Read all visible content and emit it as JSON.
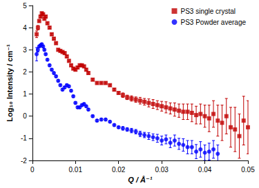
{
  "chart_data": {
    "type": "scatter",
    "x_label": "Q / Å⁻¹",
    "y_label": "Log₁₀ Intensity / cm⁻¹",
    "xlim": [
      0,
      0.05
    ],
    "xticks": [
      0,
      0.01,
      0.02,
      0.03,
      0.04,
      0.05
    ],
    "ylim": [
      -2,
      5
    ],
    "yticks": [
      -2,
      -1,
      0,
      1,
      2,
      3,
      4,
      5
    ],
    "grid": false,
    "legend": "top-right",
    "series": [
      {
        "name": "PS3 single crystal",
        "color": "#c00000",
        "marker": "square",
        "x": [
          0.001,
          0.0013,
          0.0016,
          0.0019,
          0.0022,
          0.0025,
          0.0028,
          0.0031,
          0.0035,
          0.004,
          0.0045,
          0.005,
          0.0055,
          0.006,
          0.0065,
          0.007,
          0.0075,
          0.008,
          0.0085,
          0.009,
          0.0095,
          0.01,
          0.0105,
          0.011,
          0.0115,
          0.012,
          0.0125,
          0.013,
          0.014,
          0.015,
          0.016,
          0.017,
          0.018,
          0.019,
          0.02,
          0.021,
          0.022,
          0.023,
          0.024,
          0.025,
          0.026,
          0.027,
          0.028,
          0.029,
          0.03,
          0.031,
          0.032,
          0.033,
          0.034,
          0.035,
          0.036,
          0.037,
          0.038,
          0.039,
          0.04,
          0.041,
          0.042,
          0.043,
          0.044,
          0.045,
          0.046,
          0.047,
          0.048,
          0.049,
          0.05
        ],
        "values": [
          3.7,
          4.0,
          4.3,
          4.5,
          4.65,
          4.6,
          4.4,
          4.5,
          4.2,
          4.0,
          3.7,
          3.5,
          3.3,
          3.0,
          2.95,
          2.9,
          2.85,
          2.7,
          2.5,
          2.3,
          2.15,
          2.1,
          2.2,
          2.3,
          2.3,
          2.25,
          2.1,
          1.95,
          1.65,
          1.5,
          1.5,
          1.5,
          1.4,
          1.2,
          1.05,
          0.95,
          0.85,
          0.8,
          0.75,
          0.7,
          0.65,
          0.6,
          0.55,
          0.5,
          0.45,
          0.4,
          0.35,
          0.3,
          0.25,
          0.2,
          0.2,
          0.15,
          0.05,
          0.1,
          0.0,
          -0.1,
          0.1,
          -0.2,
          -0.3,
          0.0,
          -0.5,
          -0.6,
          -0.9,
          -0.2,
          -0.5
        ],
        "errors": [
          0.15,
          0.1,
          0.05,
          0.05,
          0.05,
          0.05,
          0.05,
          0.05,
          0.05,
          0.05,
          0.05,
          0.05,
          0.05,
          0.05,
          0.05,
          0.05,
          0.05,
          0.05,
          0.05,
          0.05,
          0.05,
          0.05,
          0.05,
          0.05,
          0.05,
          0.05,
          0.05,
          0.05,
          0.05,
          0.05,
          0.05,
          0.05,
          0.05,
          0.05,
          0.05,
          0.1,
          0.1,
          0.12,
          0.12,
          0.15,
          0.15,
          0.18,
          0.2,
          0.2,
          0.22,
          0.25,
          0.25,
          0.3,
          0.3,
          0.35,
          0.35,
          0.4,
          0.4,
          0.45,
          0.5,
          0.6,
          0.6,
          0.7,
          0.8,
          0.8,
          0.9,
          1.0,
          1.0,
          1.1,
          1.2
        ]
      },
      {
        "name": "PS3 Powder average",
        "color": "#0000ff",
        "marker": "circle",
        "x": [
          0.001,
          0.0013,
          0.0016,
          0.0019,
          0.0022,
          0.0025,
          0.0028,
          0.0031,
          0.0035,
          0.004,
          0.0045,
          0.005,
          0.0055,
          0.006,
          0.0065,
          0.007,
          0.0075,
          0.008,
          0.0085,
          0.009,
          0.0095,
          0.01,
          0.0105,
          0.011,
          0.0115,
          0.012,
          0.0125,
          0.013,
          0.014,
          0.015,
          0.016,
          0.017,
          0.018,
          0.019,
          0.02,
          0.021,
          0.022,
          0.023,
          0.024,
          0.025,
          0.026,
          0.027,
          0.028,
          0.029,
          0.03,
          0.031,
          0.032,
          0.033,
          0.034,
          0.035,
          0.036,
          0.037,
          0.038,
          0.039,
          0.04,
          0.041,
          0.042,
          0.043
        ],
        "values": [
          2.8,
          3.0,
          3.15,
          3.2,
          3.25,
          3.15,
          3.0,
          2.8,
          2.55,
          2.3,
          2.1,
          1.95,
          1.8,
          1.6,
          1.4,
          1.2,
          1.3,
          1.4,
          1.35,
          1.15,
          0.9,
          0.6,
          0.4,
          0.4,
          0.5,
          0.55,
          0.45,
          0.3,
          0.0,
          -0.2,
          -0.15,
          -0.15,
          -0.25,
          -0.4,
          -0.5,
          -0.55,
          -0.6,
          -0.65,
          -0.7,
          -0.8,
          -0.85,
          -0.9,
          -0.95,
          -1.0,
          -1.1,
          -1.05,
          -1.2,
          -1.1,
          -1.25,
          -1.3,
          -1.4,
          -1.4,
          -1.6,
          -1.5,
          -1.65,
          -1.6,
          -1.5,
          -1.7
        ],
        "errors": [
          0.3,
          0.1,
          0.05,
          0.05,
          0.05,
          0.05,
          0.05,
          0.05,
          0.05,
          0.05,
          0.05,
          0.05,
          0.05,
          0.05,
          0.05,
          0.05,
          0.05,
          0.05,
          0.05,
          0.05,
          0.05,
          0.05,
          0.05,
          0.05,
          0.05,
          0.05,
          0.05,
          0.05,
          0.05,
          0.05,
          0.05,
          0.05,
          0.05,
          0.05,
          0.05,
          0.08,
          0.08,
          0.1,
          0.1,
          0.12,
          0.12,
          0.15,
          0.15,
          0.18,
          0.2,
          0.2,
          0.22,
          0.25,
          0.25,
          0.28,
          0.3,
          0.3,
          0.32,
          0.35,
          0.35,
          0.38,
          0.4,
          0.4
        ]
      }
    ]
  }
}
